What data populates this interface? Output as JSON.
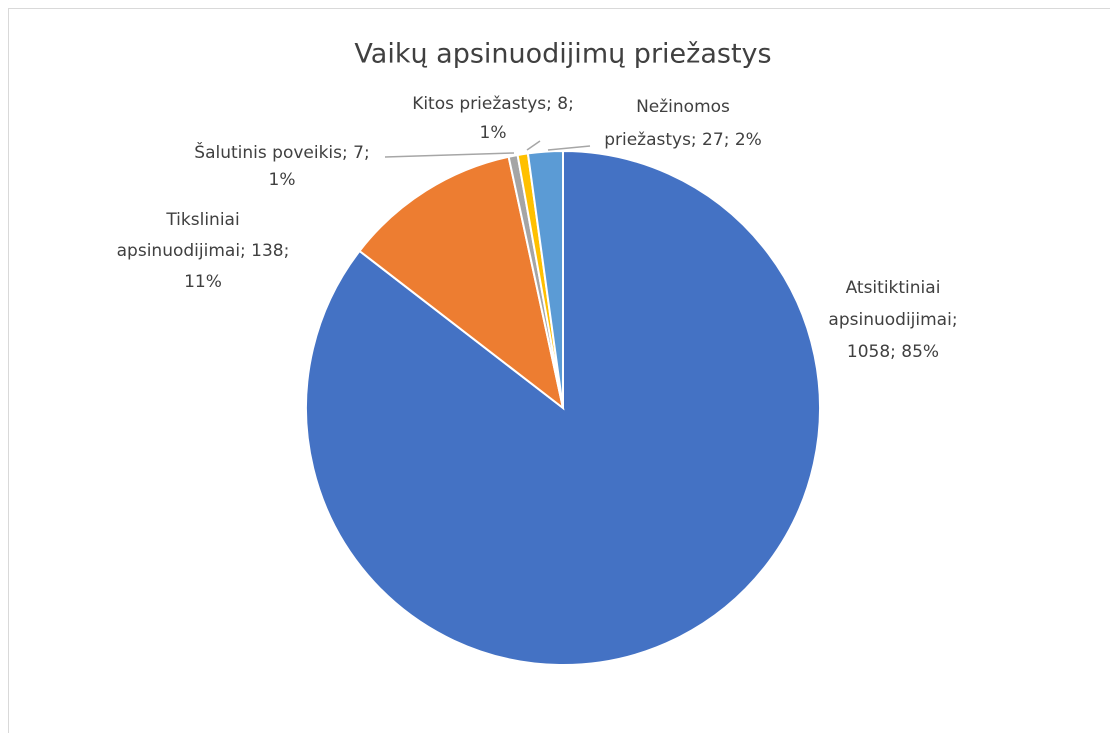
{
  "chart_data": {
    "type": "pie",
    "title": "Vaikų apsinuodijimų priežastys",
    "categories": [
      "Atsitiktiniai apsinuodijimai",
      "Tiksliniai apsinuodijimai",
      "Šalutinis poveikis",
      "Kitos priežastys",
      "Nežinomos priežastys"
    ],
    "values": [
      1058,
      138,
      7,
      8,
      27
    ],
    "colors": [
      "#4472c4",
      "#ed7d31",
      "#a5a5a5",
      "#ffc000",
      "#5b9bd5"
    ],
    "data_labels": [
      [
        "Atsitiktiniai",
        "apsinuodijimai;",
        "1058; 85%"
      ],
      [
        "Tiksliniai",
        "apsinuodijimai; 138;",
        "11%"
      ],
      [
        "Šalutinis poveikis; 7;",
        "1%"
      ],
      [
        "Kitos priežastys; 8;",
        "1%"
      ],
      [
        "Nežinomos",
        "priežastys; 27; 2%"
      ]
    ]
  }
}
